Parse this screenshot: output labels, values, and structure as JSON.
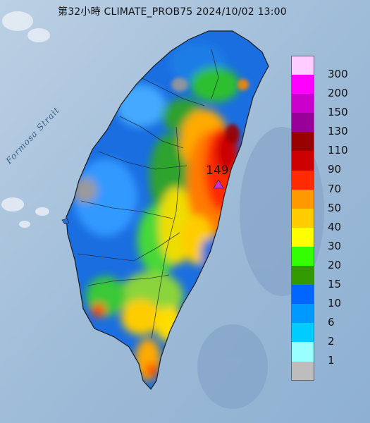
{
  "map": {
    "title": "第32小時  CLIMATE_PROB75 2024/10/02 13:00",
    "strait_label": "Formosa Strait",
    "max_value": "149"
  },
  "legend": {
    "levels": [
      {
        "label": "300",
        "color": "#ffccff"
      },
      {
        "label": "200",
        "color": "#ff00ff"
      },
      {
        "label": "150",
        "color": "#cc00cc"
      },
      {
        "label": "130",
        "color": "#990099"
      },
      {
        "label": "110",
        "color": "#990000"
      },
      {
        "label": "90",
        "color": "#cc0000"
      },
      {
        "label": "70",
        "color": "#ff2a00"
      },
      {
        "label": "50",
        "color": "#ff9900"
      },
      {
        "label": "40",
        "color": "#ffcc00"
      },
      {
        "label": "30",
        "color": "#ffff00"
      },
      {
        "label": "20",
        "color": "#33ff00"
      },
      {
        "label": "15",
        "color": "#339900"
      },
      {
        "label": "10",
        "color": "#0066ff"
      },
      {
        "label": "6",
        "color": "#0099ff"
      },
      {
        "label": "2",
        "color": "#00ccff"
      },
      {
        "label": "1",
        "color": "#99ffff"
      },
      {
        "label": "",
        "color": "#bdbdbd"
      }
    ]
  },
  "colors": {
    "sea": "#a9c3dc",
    "land_base": "#1a6ee0",
    "marker": "#cc33cc"
  }
}
